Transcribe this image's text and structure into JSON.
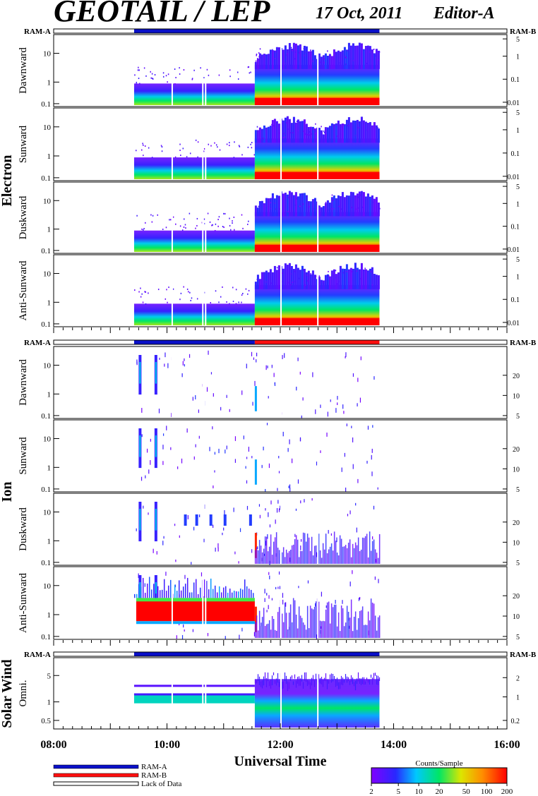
{
  "header": {
    "title": "GEOTAIL / LEP",
    "date": "17 Oct, 2011",
    "editor": "Editor-A"
  },
  "groups": {
    "electron": "Electron",
    "ion": "Ion",
    "solar_wind": "Solar Wind"
  },
  "ram_labels": {
    "left": "RAM-A",
    "right": "RAM-B"
  },
  "xaxis": {
    "title": "Universal Time",
    "ticks": [
      "08:00",
      "10:00",
      "12:00",
      "14:00",
      "16:00"
    ],
    "range_hours": [
      8,
      16
    ]
  },
  "legend": {
    "ram_a": "RAM-A",
    "ram_b": "RAM-B",
    "lack": "Lack of Data",
    "ram_a_color": "#0a10c8",
    "ram_b_color": "#ff1010"
  },
  "colorbar": {
    "title": "Counts/Sample",
    "ticks": [
      "2",
      "5",
      "10",
      "20",
      "50",
      "100",
      "200"
    ],
    "range": [
      2,
      200
    ],
    "scale": "log"
  },
  "chart_data": {
    "type": "heatmap",
    "time_range_ut": [
      "08:00",
      "16:00"
    ],
    "data_coverage_ut": [
      "09:25",
      "13:45"
    ],
    "gaps_ut": [
      "10:05",
      "10:38",
      "10:40",
      "12:00",
      "12:40"
    ],
    "panels": [
      {
        "group": "Electron",
        "label": "Dawnward",
        "left_ticks": [
          "10",
          "1",
          "0.1"
        ],
        "right_ticks": [
          "5",
          "1",
          "0.1",
          "0.01"
        ],
        "ram_bar": "A"
      },
      {
        "group": "Electron",
        "label": "Sunward",
        "left_ticks": [
          "10",
          "1",
          "0.1"
        ],
        "right_ticks": [
          "5",
          "1",
          "0.1",
          "0.01"
        ]
      },
      {
        "group": "Electron",
        "label": "Duskward",
        "left_ticks": [
          "10",
          "1",
          "0.1"
        ],
        "right_ticks": [
          "5",
          "1",
          "0.1",
          "0.01"
        ]
      },
      {
        "group": "Electron",
        "label": "Anti-Sunward",
        "left_ticks": [
          "10",
          "1",
          "0.1"
        ],
        "right_ticks": [
          "5",
          "1",
          "0.1",
          "0.01"
        ]
      },
      {
        "group": "Ion",
        "label": "Dawnward",
        "left_ticks": [
          "10",
          "1",
          "0.1"
        ],
        "right_ticks": [
          "20",
          "10",
          "5"
        ],
        "ram_bar": "A then B after 11:33"
      },
      {
        "group": "Ion",
        "label": "Sunward",
        "left_ticks": [
          "10",
          "1",
          "0.1"
        ],
        "right_ticks": [
          "20",
          "10",
          "5"
        ]
      },
      {
        "group": "Ion",
        "label": "Duskward",
        "left_ticks": [
          "10",
          "1",
          "0.1"
        ],
        "right_ticks": [
          "20",
          "10",
          "5"
        ]
      },
      {
        "group": "Ion",
        "label": "Anti-Sunward",
        "left_ticks": [
          "10",
          "1",
          "0.1"
        ],
        "right_ticks": [
          "20",
          "10",
          "5"
        ]
      },
      {
        "group": "Solar Wind",
        "label": "Omni.",
        "left_ticks": [
          "5",
          "1",
          "0.5"
        ],
        "right_ticks": [
          "2",
          "1",
          "0.2"
        ],
        "ram_bar": "A"
      }
    ]
  }
}
